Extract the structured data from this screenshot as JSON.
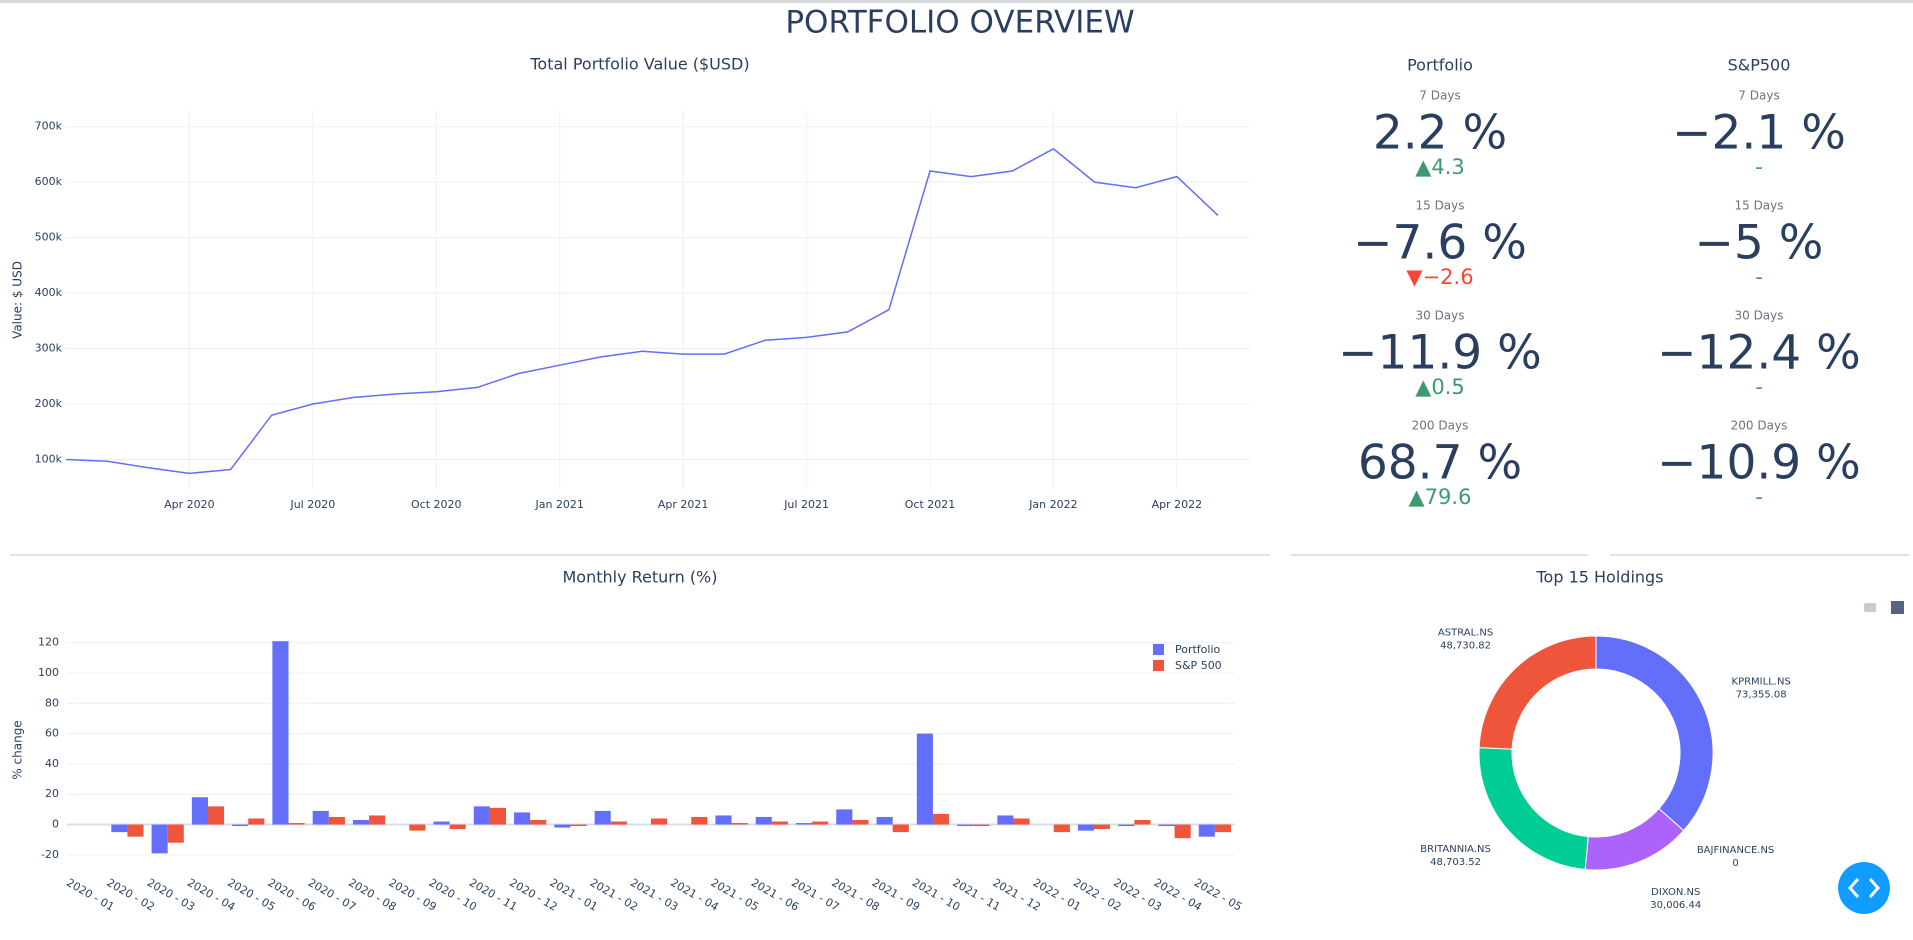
{
  "title": "PORTFOLIO OVERVIEW",
  "chart_data": [
    {
      "type": "line",
      "title": "Total Portfolio Value ($USD)",
      "y_label": "Value: $ USD",
      "color": "#636efa",
      "grid": true,
      "x": [
        "2020-01",
        "2020-02",
        "2020-03",
        "2020-04",
        "2020-05",
        "2020-06",
        "2020-07",
        "2020-08",
        "2020-09",
        "2020-10",
        "2020-11",
        "2020-12",
        "2021-01",
        "2021-02",
        "2021-03",
        "2021-04",
        "2021-05",
        "2021-06",
        "2021-07",
        "2021-08",
        "2021-09",
        "2021-10",
        "2021-11",
        "2021-12",
        "2022-01",
        "2022-02",
        "2022-03",
        "2022-04",
        "2022-05"
      ],
      "values": [
        100000,
        97000,
        85000,
        75000,
        82000,
        180000,
        200000,
        212000,
        218000,
        222000,
        230000,
        255000,
        270000,
        285000,
        295000,
        290000,
        290000,
        315000,
        320000,
        330000,
        370000,
        620000,
        610000,
        620000,
        660000,
        600000,
        590000,
        610000,
        540000
      ],
      "xlim": [
        "2020-01",
        "2022-05"
      ],
      "xticks": [
        {
          "value": "2020-04",
          "label": "Apr 2020"
        },
        {
          "value": "2020-07",
          "label": "Jul 2020"
        },
        {
          "value": "2020-10",
          "label": "Oct 2020"
        },
        {
          "value": "2021-01",
          "label": "Jan 2021"
        },
        {
          "value": "2021-04",
          "label": "Apr 2021"
        },
        {
          "value": "2021-07",
          "label": "Jul 2021"
        },
        {
          "value": "2021-10",
          "label": "Oct 2021"
        },
        {
          "value": "2022-01",
          "label": "Jan 2022"
        },
        {
          "value": "2022-04",
          "label": "Apr 2022"
        }
      ],
      "ylim": [
        45000,
        730000
      ],
      "yticks": [
        {
          "value": 100000,
          "label": "100k"
        },
        {
          "value": 200000,
          "label": "200k"
        },
        {
          "value": 300000,
          "label": "300k"
        },
        {
          "value": 400000,
          "label": "400k"
        },
        {
          "value": 500000,
          "label": "500k"
        },
        {
          "value": 600000,
          "label": "600k"
        },
        {
          "value": 700000,
          "label": "700k"
        }
      ]
    },
    {
      "type": "bar",
      "title": "Monthly Return (%)",
      "y_label": "% change",
      "grid": true,
      "legend": "top-right",
      "categories": [
        "2020 - 01",
        "2020 - 02",
        "2020 - 03",
        "2020 - 04",
        "2020 - 05",
        "2020 - 06",
        "2020 - 07",
        "2020 - 08",
        "2020 - 09",
        "2020 - 10",
        "2020 - 11",
        "2020 - 12",
        "2021 - 01",
        "2021 - 02",
        "2021 - 03",
        "2021 - 04",
        "2021 - 05",
        "2021 - 06",
        "2021 - 07",
        "2021 - 08",
        "2021 - 09",
        "2021 - 10",
        "2021 - 11",
        "2021 - 12",
        "2022 - 01",
        "2022 - 02",
        "2022 - 03",
        "2022 - 04",
        "2022 - 05"
      ],
      "series": [
        {
          "name": "Portfolio",
          "color": "#636efa",
          "values": [
            null,
            -5,
            -19,
            18,
            -1,
            121,
            9,
            3,
            0,
            2,
            12,
            8,
            -2,
            9,
            0,
            0,
            6,
            5,
            1,
            10,
            5,
            60,
            -1,
            6,
            0,
            -4,
            -1,
            -1,
            -8
          ]
        },
        {
          "name": "S&P 500",
          "color": "#ef553b",
          "values": [
            null,
            -8,
            -12,
            12,
            4,
            1,
            5,
            6,
            -4,
            -3,
            11,
            3,
            -1,
            2,
            4,
            5,
            1,
            2,
            2,
            3,
            -5,
            7,
            -1,
            4,
            -5,
            -3,
            3,
            -9,
            -5
          ]
        }
      ],
      "ylim": [
        -30,
        135
      ],
      "yticks": [
        -20,
        0,
        20,
        40,
        60,
        80,
        100,
        120
      ]
    },
    {
      "type": "pie",
      "title": "Top 15 Holdings",
      "categories": [
        "KPRMILL.NS",
        "BAJFINANCE.NS",
        "DIXON.NS",
        "BRITANNIA.NS",
        "ASTRAL.NS"
      ],
      "values": [
        73355.08,
        0,
        30006.44,
        48703.52,
        48730.82
      ],
      "value_labels": [
        "73,355.08",
        "0",
        "30,006.44",
        "48,703.52",
        "48,730.82"
      ],
      "colors": [
        "#636efa",
        "#19d3f3",
        "#ab63fa",
        "#00cc96",
        "#ef553b"
      ]
    }
  ],
  "indicators": {
    "columns": [
      {
        "name": "Portfolio",
        "rows": [
          {
            "period": "7 Days",
            "value": "2.2 %",
            "delta": "▲4.3",
            "delta_color": "#3d9970"
          },
          {
            "period": "15 Days",
            "value": "−7.6 %",
            "delta": "▼−2.6",
            "delta_color": "#ff4136"
          },
          {
            "period": "30 Days",
            "value": "−11.9 %",
            "delta": "▲0.5",
            "delta_color": "#3d9970"
          },
          {
            "period": "200 Days",
            "value": "68.7 %",
            "delta": "▲79.6",
            "delta_color": "#3d9970"
          }
        ]
      },
      {
        "name": "S&P500",
        "rows": [
          {
            "period": "7 Days",
            "value": "−2.1 %",
            "delta": "-",
            "delta_color": "#3d9970"
          },
          {
            "period": "15 Days",
            "value": "−5 %",
            "delta": "-",
            "delta_color": "#3d9970"
          },
          {
            "period": "30 Days",
            "value": "−12.4 %",
            "delta": "-",
            "delta_color": "#3d9970"
          },
          {
            "period": "200 Days",
            "value": "−10.9 %",
            "delta": "-",
            "delta_color": "#3d9970"
          }
        ]
      }
    ]
  }
}
